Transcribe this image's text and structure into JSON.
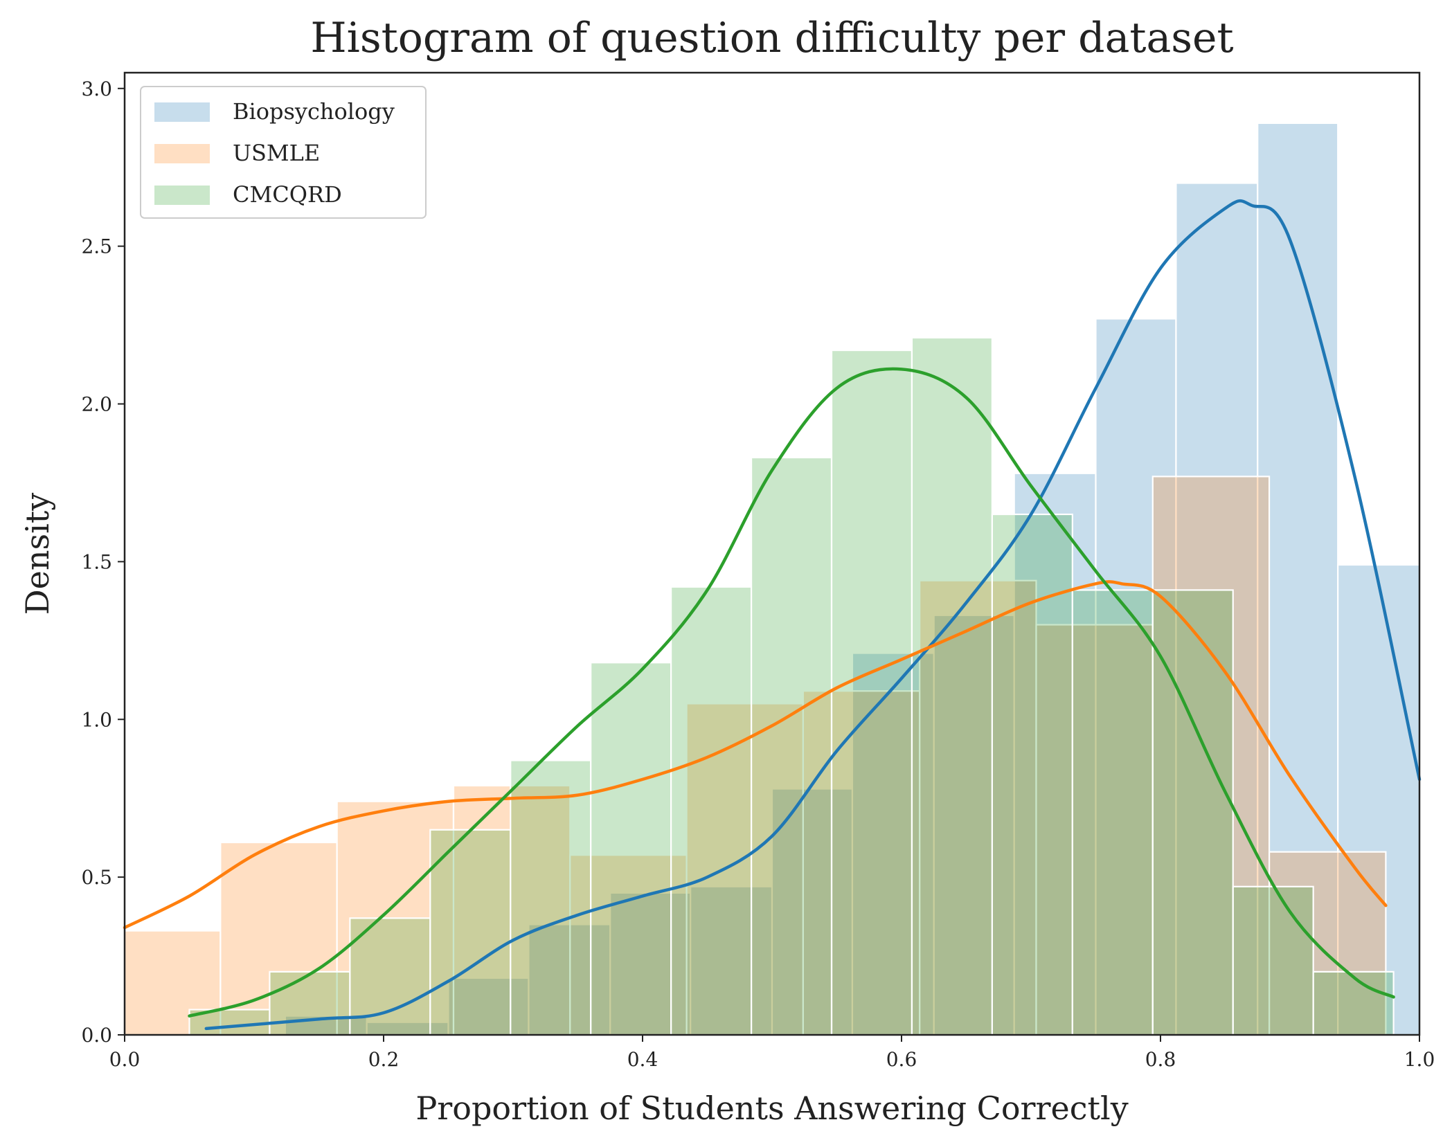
{
  "chart_data": {
    "type": "histogram",
    "title": "Histogram of question difficulty per dataset",
    "xlabel": "Proportion of Students Answering Correctly",
    "ylabel": "Density",
    "xlim": [
      0.0,
      1.0
    ],
    "ylim": [
      0.0,
      3.05
    ],
    "xticks": [
      "0.0",
      "0.2",
      "0.4",
      "0.6",
      "0.8",
      "1.0"
    ],
    "yticks": [
      "0.0",
      "0.5",
      "1.0",
      "1.5",
      "2.0",
      "2.5",
      "3.0"
    ],
    "grid": false,
    "legend_position": "top-left",
    "series": [
      {
        "name": "Biopsychology",
        "color": "#1f77b4",
        "bins": [
          {
            "x0": 0.124,
            "x1": 0.187,
            "density": 0.06
          },
          {
            "x0": 0.187,
            "x1": 0.25,
            "density": 0.04
          },
          {
            "x0": 0.25,
            "x1": 0.312,
            "density": 0.18
          },
          {
            "x0": 0.312,
            "x1": 0.375,
            "density": 0.35
          },
          {
            "x0": 0.375,
            "x1": 0.437,
            "density": 0.45
          },
          {
            "x0": 0.437,
            "x1": 0.5,
            "density": 0.47
          },
          {
            "x0": 0.5,
            "x1": 0.562,
            "density": 0.78
          },
          {
            "x0": 0.562,
            "x1": 0.625,
            "density": 1.21
          },
          {
            "x0": 0.625,
            "x1": 0.687,
            "density": 1.33
          },
          {
            "x0": 0.687,
            "x1": 0.75,
            "density": 1.78
          },
          {
            "x0": 0.75,
            "x1": 0.812,
            "density": 2.27
          },
          {
            "x0": 0.812,
            "x1": 0.875,
            "density": 2.7
          },
          {
            "x0": 0.875,
            "x1": 0.937,
            "density": 2.89
          },
          {
            "x0": 0.937,
            "x1": 1.0,
            "density": 1.49
          }
        ],
        "kde_x": [
          0.063,
          0.15,
          0.2,
          0.25,
          0.3,
          0.35,
          0.4,
          0.45,
          0.5,
          0.55,
          0.6,
          0.65,
          0.7,
          0.75,
          0.8,
          0.85,
          0.87,
          0.9,
          0.95,
          1.0
        ],
        "kde_y": [
          0.02,
          0.05,
          0.07,
          0.17,
          0.3,
          0.38,
          0.44,
          0.5,
          0.63,
          0.9,
          1.13,
          1.37,
          1.65,
          2.05,
          2.43,
          2.62,
          2.63,
          2.52,
          1.77,
          0.81
        ]
      },
      {
        "name": "USMLE",
        "color": "#ff7f0e",
        "bins": [
          {
            "x0": 0.0,
            "x1": 0.074,
            "density": 0.33
          },
          {
            "x0": 0.074,
            "x1": 0.164,
            "density": 0.61
          },
          {
            "x0": 0.164,
            "x1": 0.254,
            "density": 0.74
          },
          {
            "x0": 0.254,
            "x1": 0.344,
            "density": 0.79
          },
          {
            "x0": 0.344,
            "x1": 0.434,
            "density": 0.57
          },
          {
            "x0": 0.434,
            "x1": 0.524,
            "density": 1.05
          },
          {
            "x0": 0.524,
            "x1": 0.614,
            "density": 1.09
          },
          {
            "x0": 0.614,
            "x1": 0.704,
            "density": 1.44
          },
          {
            "x0": 0.704,
            "x1": 0.794,
            "density": 1.3
          },
          {
            "x0": 0.794,
            "x1": 0.884,
            "density": 1.77
          },
          {
            "x0": 0.884,
            "x1": 0.974,
            "density": 0.58
          }
        ],
        "kde_x": [
          0.0,
          0.05,
          0.1,
          0.15,
          0.2,
          0.25,
          0.3,
          0.35,
          0.4,
          0.45,
          0.5,
          0.55,
          0.6,
          0.65,
          0.7,
          0.75,
          0.77,
          0.8,
          0.85,
          0.9,
          0.95,
          0.974
        ],
        "kde_y": [
          0.34,
          0.44,
          0.57,
          0.66,
          0.71,
          0.74,
          0.75,
          0.76,
          0.81,
          0.88,
          0.98,
          1.1,
          1.19,
          1.28,
          1.37,
          1.43,
          1.43,
          1.39,
          1.15,
          0.82,
          0.53,
          0.41
        ]
      },
      {
        "name": "CMCQRD",
        "color": "#2ca02c",
        "bins": [
          {
            "x0": 0.05,
            "x1": 0.112,
            "density": 0.08
          },
          {
            "x0": 0.112,
            "x1": 0.174,
            "density": 0.2
          },
          {
            "x0": 0.174,
            "x1": 0.236,
            "density": 0.37
          },
          {
            "x0": 0.236,
            "x1": 0.298,
            "density": 0.65
          },
          {
            "x0": 0.298,
            "x1": 0.36,
            "density": 0.87
          },
          {
            "x0": 0.36,
            "x1": 0.422,
            "density": 1.18
          },
          {
            "x0": 0.422,
            "x1": 0.484,
            "density": 1.42
          },
          {
            "x0": 0.484,
            "x1": 0.546,
            "density": 1.83
          },
          {
            "x0": 0.546,
            "x1": 0.608,
            "density": 2.17
          },
          {
            "x0": 0.608,
            "x1": 0.67,
            "density": 2.21
          },
          {
            "x0": 0.67,
            "x1": 0.732,
            "density": 1.65
          },
          {
            "x0": 0.732,
            "x1": 0.794,
            "density": 1.41
          },
          {
            "x0": 0.794,
            "x1": 0.856,
            "density": 1.41
          },
          {
            "x0": 0.856,
            "x1": 0.918,
            "density": 0.47
          },
          {
            "x0": 0.918,
            "x1": 0.98,
            "density": 0.2
          }
        ],
        "kde_x": [
          0.05,
          0.1,
          0.15,
          0.2,
          0.25,
          0.3,
          0.35,
          0.4,
          0.45,
          0.5,
          0.55,
          0.6,
          0.65,
          0.7,
          0.75,
          0.8,
          0.85,
          0.9,
          0.95,
          0.98
        ],
        "kde_y": [
          0.06,
          0.11,
          0.21,
          0.38,
          0.58,
          0.78,
          0.98,
          1.16,
          1.41,
          1.79,
          2.05,
          2.11,
          2.02,
          1.74,
          1.47,
          1.2,
          0.77,
          0.39,
          0.18,
          0.12
        ]
      }
    ]
  }
}
